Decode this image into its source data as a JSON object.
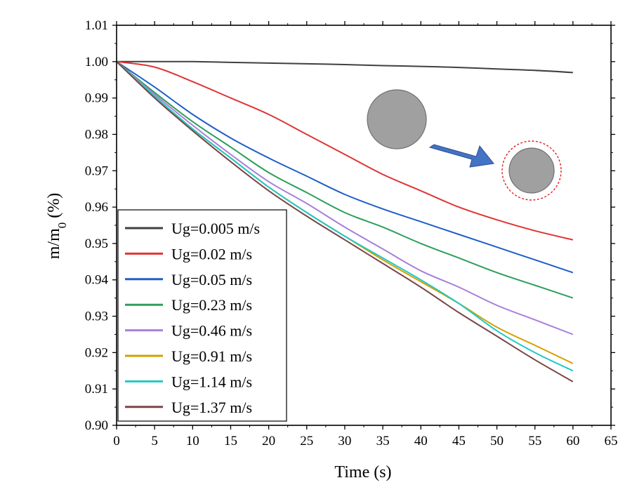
{
  "chart_data": {
    "type": "line",
    "title": "",
    "xlabel": "Time (s)",
    "ylabel": "m/m0 (%)",
    "ylabel_parts": {
      "main": "m/m",
      "sub": "0",
      "unit": " (%)"
    },
    "xlim": [
      0,
      65
    ],
    "ylim": [
      0.9,
      1.01
    ],
    "x_ticks": [
      0,
      5,
      10,
      15,
      20,
      25,
      30,
      35,
      40,
      45,
      50,
      55,
      60,
      65
    ],
    "x_tick_labels": [
      "0",
      "5",
      "10",
      "15",
      "20",
      "25",
      "30",
      "35",
      "40",
      "45",
      "50",
      "55",
      "60",
      "65"
    ],
    "y_ticks": [
      0.9,
      0.91,
      0.92,
      0.93,
      0.94,
      0.95,
      0.96,
      0.97,
      0.98,
      0.99,
      1.0,
      1.01
    ],
    "y_tick_labels": [
      "0.90",
      "0.91",
      "0.92",
      "0.93",
      "0.94",
      "0.95",
      "0.96",
      "0.97",
      "0.98",
      "0.99",
      "1.00",
      "1.01"
    ],
    "grid": false,
    "legend_position": "bottom-left",
    "x": [
      0,
      5,
      10,
      15,
      20,
      25,
      30,
      35,
      40,
      45,
      50,
      55,
      60
    ],
    "series": [
      {
        "name": "Ug=0.005 m/s",
        "color": "#404040",
        "values": [
          1.0,
          1.0,
          1.0,
          0.9998,
          0.9996,
          0.9994,
          0.9992,
          0.9989,
          0.9987,
          0.9984,
          0.998,
          0.9976,
          0.997
        ]
      },
      {
        "name": "Ug=0.02 m/s",
        "color": "#e03434",
        "values": [
          1.0,
          0.9985,
          0.9945,
          0.99,
          0.9855,
          0.98,
          0.9745,
          0.969,
          0.9645,
          0.96,
          0.9565,
          0.9535,
          0.951
        ]
      },
      {
        "name": "Ug=0.05 m/s",
        "color": "#1f5fc8",
        "values": [
          1.0,
          0.993,
          0.9855,
          0.979,
          0.9735,
          0.9685,
          0.9635,
          0.9595,
          0.956,
          0.9525,
          0.949,
          0.9455,
          0.942
        ]
      },
      {
        "name": "Ug=0.23 m/s",
        "color": "#2e9e5b",
        "values": [
          1.0,
          0.9915,
          0.9835,
          0.9765,
          0.9695,
          0.964,
          0.9585,
          0.9545,
          0.95,
          0.946,
          0.942,
          0.9385,
          0.935
        ]
      },
      {
        "name": "Ug=0.46 m/s",
        "color": "#a87fdb",
        "values": [
          1.0,
          0.991,
          0.9825,
          0.9745,
          0.967,
          0.961,
          0.9545,
          0.9485,
          0.9425,
          0.938,
          0.933,
          0.929,
          0.925
        ]
      },
      {
        "name": "Ug=0.91 m/s",
        "color": "#d4a000",
        "values": [
          1.0,
          0.9905,
          0.9815,
          0.9735,
          0.9655,
          0.9585,
          0.952,
          0.9455,
          0.9395,
          0.9335,
          0.927,
          0.922,
          0.917
        ]
      },
      {
        "name": "Ug=1.14 m/s",
        "color": "#22c8c8",
        "values": [
          1.0,
          0.9905,
          0.9815,
          0.9735,
          0.9655,
          0.9585,
          0.952,
          0.946,
          0.94,
          0.9335,
          0.926,
          0.92,
          0.915
        ]
      },
      {
        "name": "Ug=1.37 m/s",
        "color": "#7a4646",
        "values": [
          1.0,
          0.99,
          0.981,
          0.9725,
          0.9645,
          0.9575,
          0.951,
          0.9445,
          0.938,
          0.931,
          0.9245,
          0.918,
          0.912
        ]
      }
    ],
    "inset_illustration": {
      "large_sphere_color": "#a0a0a0",
      "arrow_color": "#4472c4",
      "small_sphere_color": "#a0a0a0",
      "outline_color": "#e02020"
    }
  }
}
